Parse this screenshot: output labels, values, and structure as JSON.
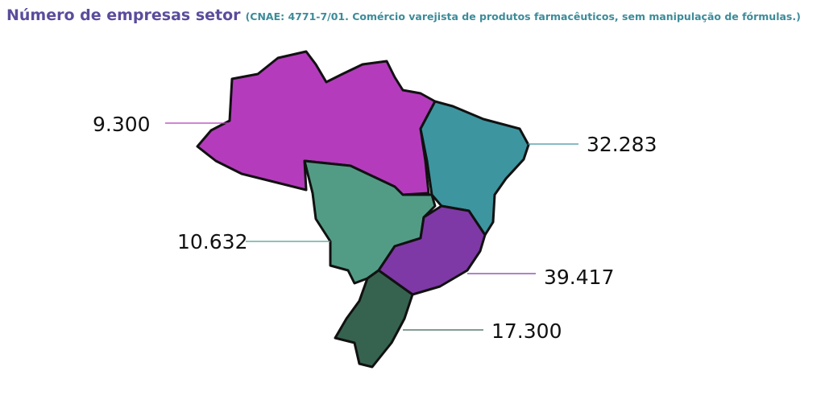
{
  "title": "Número de empresas setor",
  "subtitle": "(CNAE: 4771-7/01. Comércio varejista de produtos farmacêuticos, sem manipulação de fórmulas.)",
  "regions": [
    {
      "value": "9.300",
      "color": "#b43cbc"
    },
    {
      "value": "32.283",
      "color": "#3d95a0"
    },
    {
      "value": "10.632",
      "color": "#529c86"
    },
    {
      "value": "39.417",
      "color": "#7e39a6"
    },
    {
      "value": "17.300",
      "color": "#36634f"
    }
  ]
}
